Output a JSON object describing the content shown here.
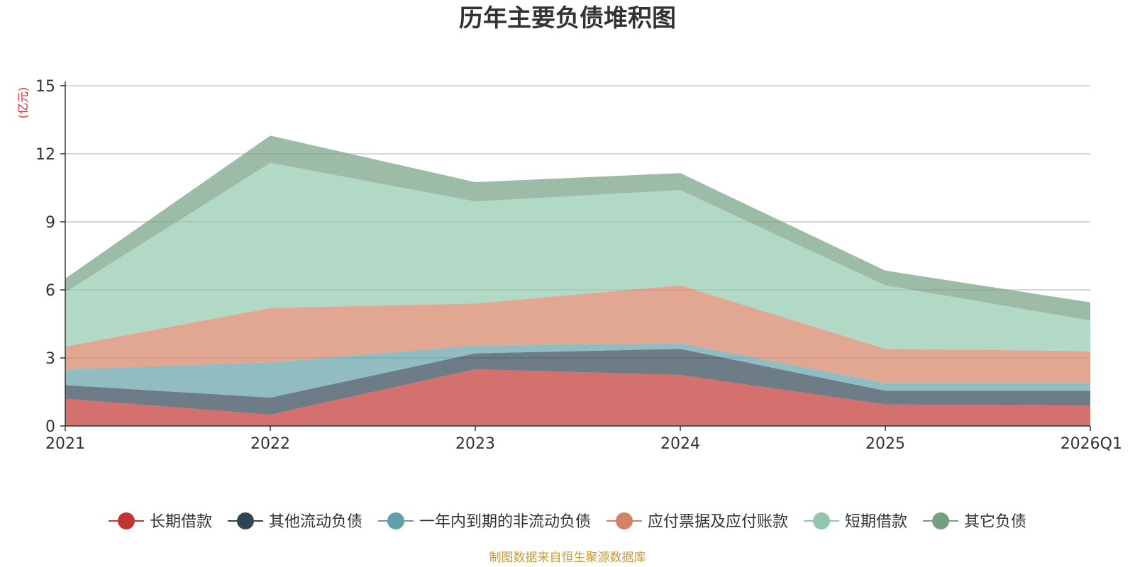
{
  "chart_data": {
    "type": "area",
    "stacked": true,
    "title": "历年主要负债堆积图",
    "ylabel": "(亿元)",
    "xlabel": "",
    "categories": [
      "2021",
      "2022",
      "2023",
      "2024",
      "2025",
      "2026Q1"
    ],
    "ylim": [
      0,
      15
    ],
    "yticks": [
      0,
      3,
      6,
      9,
      12,
      15
    ],
    "grid": true,
    "legend_position": "bottom",
    "series": [
      {
        "name": "长期借款",
        "color": "#c23531",
        "values": [
          1.2,
          0.5,
          2.5,
          2.25,
          0.95,
          0.9
        ]
      },
      {
        "name": "其他流动负债",
        "color": "#2f4554",
        "values": [
          0.6,
          0.75,
          0.7,
          1.15,
          0.6,
          0.65
        ]
      },
      {
        "name": "一年内到期的非流动负债",
        "color": "#61a0a8",
        "values": [
          0.7,
          1.55,
          0.35,
          0.25,
          0.35,
          0.35
        ]
      },
      {
        "name": "应付票据及应付账款",
        "color": "#d48265",
        "values": [
          1.0,
          2.4,
          1.85,
          2.55,
          1.5,
          1.4
        ]
      },
      {
        "name": "短期借款",
        "color": "#91c7ae",
        "values": [
          2.4,
          6.4,
          4.5,
          4.2,
          2.8,
          1.35
        ]
      },
      {
        "name": "其它负债",
        "color": "#749f83",
        "values": [
          0.6,
          1.2,
          0.85,
          0.75,
          0.65,
          0.8
        ]
      }
    ],
    "source_note": "制图数据来自恒生聚源数据库"
  }
}
